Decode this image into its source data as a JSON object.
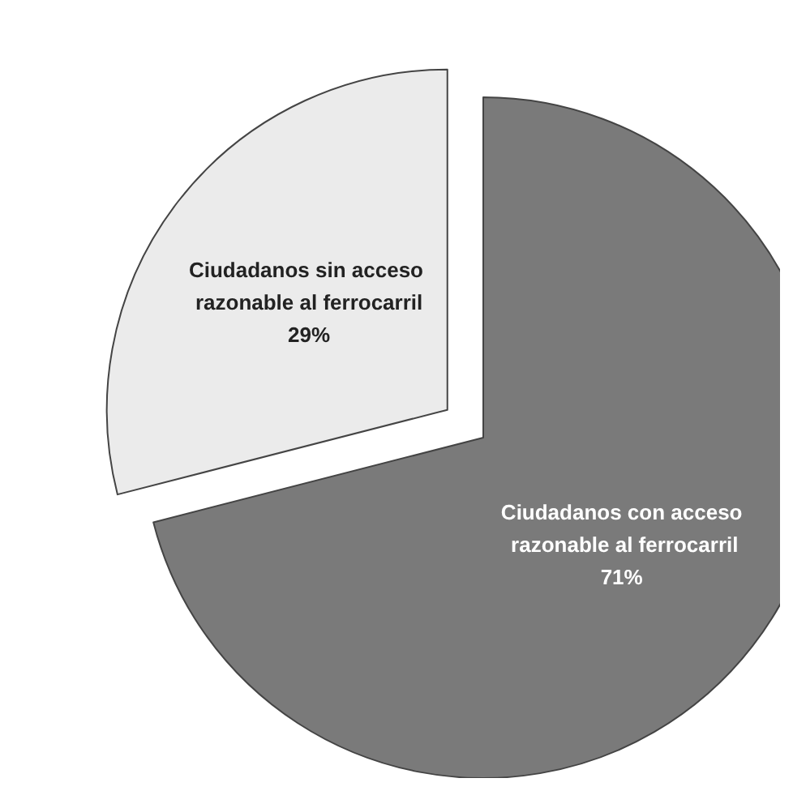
{
  "chart_data": {
    "type": "pie",
    "categories": [
      "Ciudadanos con acceso razonable al ferrocarril",
      "Ciudadanos sin acceso razonable al ferrocarril"
    ],
    "values": [
      71,
      29
    ],
    "value_labels": [
      "71%",
      "29%"
    ],
    "colors": [
      "#7a7a7a",
      "#ebebeb"
    ],
    "legend": false
  }
}
